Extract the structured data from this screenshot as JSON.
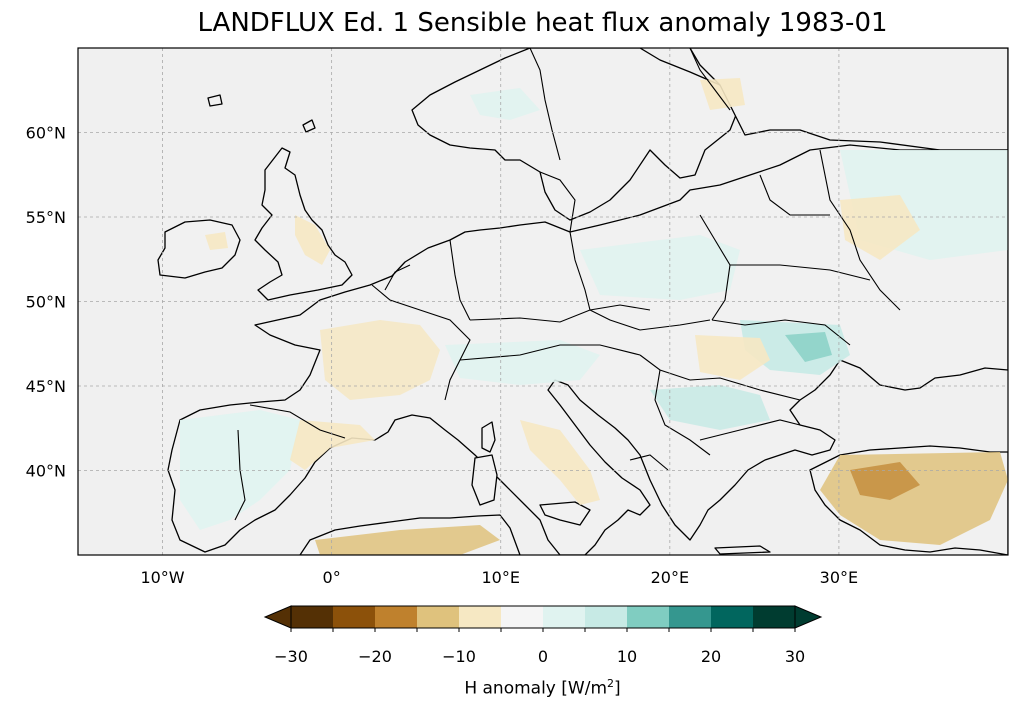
{
  "title": "LANDFLUX Ed. 1 Sensible heat flux anomaly 1983-01",
  "map": {
    "lon_range": [
      -15,
      40
    ],
    "lat_range": [
      35,
      65
    ],
    "gridlines": true,
    "lat_ticks": [
      {
        "value": 60,
        "label": "60°N"
      },
      {
        "value": 55,
        "label": "55°N"
      },
      {
        "value": 50,
        "label": "50°N"
      },
      {
        "value": 45,
        "label": "45°N"
      },
      {
        "value": 40,
        "label": "40°N"
      }
    ],
    "lon_ticks": [
      {
        "value": -10,
        "label": "10°W"
      },
      {
        "value": 0,
        "label": "0°"
      },
      {
        "value": 10,
        "label": "10°E"
      },
      {
        "value": 20,
        "label": "20°E"
      },
      {
        "value": 30,
        "label": "30°E"
      }
    ],
    "ocean_color": "#f0f0f0",
    "coastline_color": "#000000"
  },
  "colorbar": {
    "label_prefix": "H anomaly [W/m",
    "label_sup": "2",
    "label_suffix": "]",
    "bounds": [
      -30,
      -25,
      -20,
      -15,
      -10,
      -5,
      0,
      5,
      10,
      15,
      20,
      25,
      30
    ],
    "colors": [
      "#543005",
      "#8c510a",
      "#bf812d",
      "#dfc27d",
      "#f6e8c3",
      "#f5f5f5",
      "#e0f3f0",
      "#c7eae5",
      "#80cdc1",
      "#35978f",
      "#01665e",
      "#003c30"
    ],
    "under_color": "#543005",
    "over_color": "#003c30",
    "extend": "both",
    "tick_labels": [
      {
        "value": -30,
        "label": "−30"
      },
      {
        "value": -20,
        "label": "−20"
      },
      {
        "value": -10,
        "label": "−10"
      },
      {
        "value": 0,
        "label": "0"
      },
      {
        "value": 10,
        "label": "10"
      },
      {
        "value": 20,
        "label": "20"
      },
      {
        "value": 30,
        "label": "30"
      }
    ]
  }
}
